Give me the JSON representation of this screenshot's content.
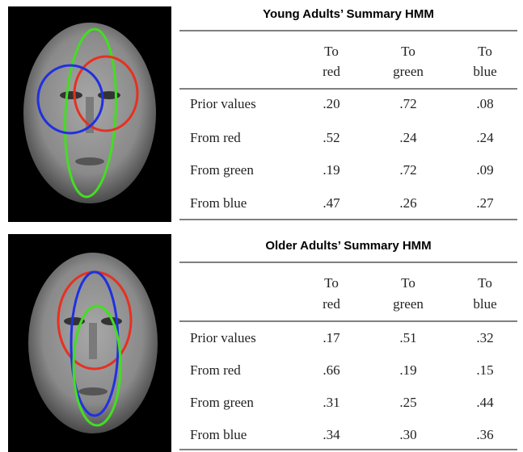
{
  "panels": [
    {
      "title": "Young Adults’ Summary HMM",
      "columns": [
        [
          "To",
          "red"
        ],
        [
          "To",
          "green"
        ],
        [
          "To",
          "blue"
        ]
      ],
      "rows": [
        {
          "label": "Prior values",
          "cells": [
            ".20",
            ".72",
            ".08"
          ]
        },
        {
          "label": "From red",
          "cells": [
            ".52",
            ".24",
            ".24"
          ]
        },
        {
          "label": "From green",
          "cells": [
            ".19",
            ".72",
            ".09"
          ]
        },
        {
          "label": "From blue",
          "cells": [
            ".47",
            ".26",
            ".27"
          ]
        }
      ]
    },
    {
      "title": "Older Adults’ Summary HMM",
      "columns": [
        [
          "To",
          "red"
        ],
        [
          "To",
          "green"
        ],
        [
          "To",
          "blue"
        ]
      ],
      "rows": [
        {
          "label": "Prior values",
          "cells": [
            ".17",
            ".51",
            ".32"
          ]
        },
        {
          "label": "From red",
          "cells": [
            ".66",
            ".19",
            ".15"
          ]
        },
        {
          "label": "From green",
          "cells": [
            ".31",
            ".25",
            ".44"
          ]
        },
        {
          "label": "From blue",
          "cells": [
            ".34",
            ".30",
            ".36"
          ]
        }
      ]
    }
  ]
}
